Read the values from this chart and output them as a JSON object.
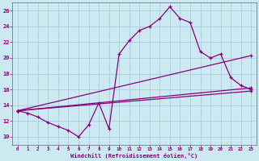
{
  "bg_color": "#cce8f0",
  "grid_color": "#aaccdd",
  "line_color": "#880077",
  "xlim": [
    -0.5,
    23.5
  ],
  "ylim": [
    9,
    27
  ],
  "xticks": [
    0,
    1,
    2,
    3,
    4,
    5,
    6,
    7,
    8,
    9,
    10,
    11,
    12,
    13,
    14,
    15,
    16,
    17,
    18,
    19,
    20,
    21,
    22,
    23
  ],
  "yticks": [
    10,
    12,
    14,
    16,
    18,
    20,
    22,
    24,
    26
  ],
  "xlabel": "Windchill (Refroidissement éolien,°C)",
  "curve1_x": [
    0,
    1,
    2,
    3,
    4,
    5,
    6,
    7,
    8,
    9,
    10,
    11,
    12,
    13,
    14,
    15,
    16,
    17,
    18,
    19,
    20,
    21,
    22,
    23
  ],
  "curve1_y": [
    13.3,
    13.0,
    12.5,
    11.8,
    11.3,
    10.8,
    10.0,
    11.5,
    14.3,
    11.0,
    20.5,
    22.2,
    23.5,
    24.0,
    25.0,
    26.5,
    25.0,
    24.5,
    20.8,
    20.0,
    20.5,
    17.5,
    16.5,
    16.0
  ],
  "line2_pts": [
    [
      0,
      13.3
    ],
    [
      23,
      20.3
    ]
  ],
  "line3_pts": [
    [
      0,
      13.3
    ],
    [
      23,
      16.2
    ]
  ],
  "line4_pts": [
    [
      0,
      13.3
    ],
    [
      23,
      15.8
    ]
  ]
}
